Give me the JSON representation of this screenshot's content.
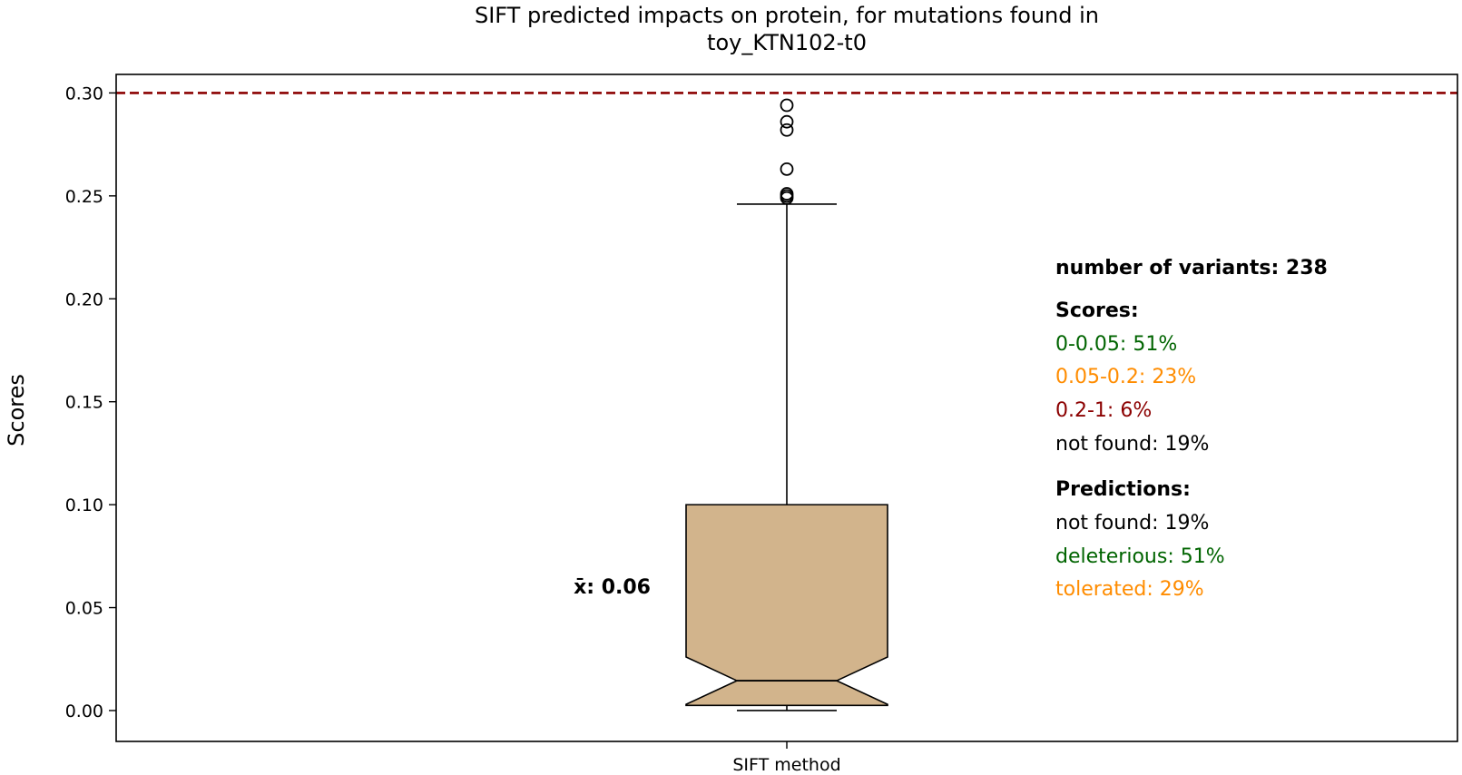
{
  "chart_data": {
    "type": "boxplot",
    "title_lines": [
      "SIFT predicted impacts on protein, for mutations found in",
      "toy_KTN102-t0"
    ],
    "xlabel": "",
    "ylabel": "Scores",
    "ylim": [
      -0.015,
      0.309
    ],
    "yticks": [
      "0.00",
      "0.05",
      "0.10",
      "0.15",
      "0.20",
      "0.25",
      "0.30"
    ],
    "ytick_values": [
      0,
      0.05,
      0.1,
      0.15,
      0.2,
      0.25,
      0.3
    ],
    "category": "SIFT method",
    "grid": false,
    "box": {
      "whisker_low": 0.0,
      "q1": 0.0025,
      "median": 0.0145,
      "q3": 0.1,
      "whisker_high": 0.246,
      "notch_low": 0.003,
      "notch_high": 0.026,
      "fill_color": "#d2b48c",
      "outliers": [
        0.294,
        0.286,
        0.282,
        0.263,
        0.251,
        0.25,
        0.249
      ]
    },
    "threshold_line": {
      "value": 0.3,
      "color": "#8b0000",
      "style": "dashed"
    },
    "mean_label": "x̄: 0.06",
    "mean_value": 0.06,
    "annotations": {
      "variants": "number of variants: 238",
      "scores_header": "Scores:",
      "score_lines": [
        {
          "text": "0-0.05: 51%",
          "color": "#006400"
        },
        {
          "text": "0.05-0.2: 23%",
          "color": "#ff8c00"
        },
        {
          "text": "0.2-1: 6%",
          "color": "#8b0000"
        },
        {
          "text": "not found: 19%",
          "color": "#000000"
        }
      ],
      "predictions_header": "Predictions:",
      "prediction_lines": [
        {
          "text": "not found: 19%",
          "color": "#000000"
        },
        {
          "text": "deleterious: 51%",
          "color": "#006400"
        },
        {
          "text": "tolerated: 29%",
          "color": "#ff8c00"
        }
      ]
    }
  }
}
